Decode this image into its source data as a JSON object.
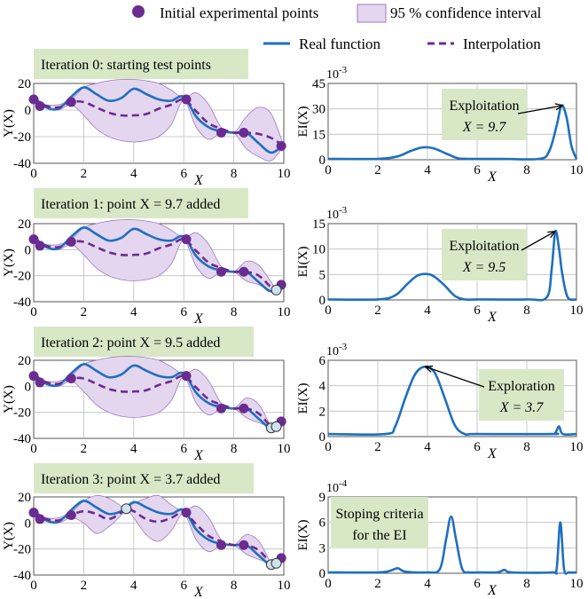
{
  "legend": {
    "initial_points": "Initial experimental points",
    "confidence": "95 % confidence interval",
    "real": "Real function",
    "interp": "Interpolation"
  },
  "colors": {
    "real": "#1f6fbf",
    "interp": "#6a2c91",
    "band_fill": "#e4d6ee",
    "band_edge": "#9b7bbf",
    "point": "#6a2c91",
    "added_point": "#cfe3ef",
    "ei": "#1f6fbf",
    "label_bg": "#d8e8c6"
  },
  "axis_labels": {
    "y_left": "Y(X)",
    "y_right": "EI(X)",
    "x": "X"
  },
  "chart_data": [
    {
      "type": "line",
      "panel": "Y0",
      "title": "Iteration 0: starting test points",
      "xlim": [
        0,
        10
      ],
      "ylim": [
        -40,
        20
      ],
      "xticks": [
        0,
        2,
        4,
        6,
        8,
        10
      ],
      "yticks": [
        -40,
        -20,
        0,
        20
      ],
      "series": [
        {
          "name": "Real function",
          "x": [
            0,
            0.5,
            1,
            1.5,
            2,
            2.5,
            3,
            3.5,
            4,
            4.5,
            5,
            5.5,
            6,
            6.5,
            7,
            7.5,
            8,
            8.5,
            9,
            9.5,
            10
          ],
          "y": [
            10,
            2,
            1,
            10,
            17,
            12,
            7,
            9,
            16,
            12,
            8,
            7,
            10,
            -5,
            -13,
            -16,
            -17,
            -17,
            -25,
            -32,
            -26
          ]
        },
        {
          "name": "Interpolation",
          "x": [
            0,
            0.5,
            1,
            1.5,
            2,
            2.5,
            3,
            3.5,
            4,
            4.5,
            5,
            5.5,
            6,
            6.5,
            7,
            7.5,
            8,
            8.5,
            9,
            9.5,
            10
          ],
          "y": [
            8,
            3,
            2,
            6,
            6,
            2,
            -2,
            -4,
            -4,
            -3,
            1,
            4,
            8,
            -1,
            -10,
            -14,
            -17,
            -17,
            -18,
            -21,
            -27
          ]
        },
        {
          "name": "95 % confidence interval",
          "x": [
            0,
            0.5,
            1,
            1.5,
            2,
            2.5,
            3,
            3.5,
            4,
            4.5,
            5,
            5.5,
            6,
            6.5,
            7,
            7.5,
            8,
            8.5,
            9,
            9.5,
            10
          ],
          "upper": [
            8,
            4,
            4,
            8,
            17,
            20,
            22,
            23,
            23,
            22,
            20,
            15,
            9,
            13,
            4,
            -13,
            -17,
            -5,
            2,
            -3,
            -27
          ],
          "lower": [
            8,
            2,
            0,
            4,
            -4,
            -14,
            -20,
            -23,
            -24,
            -23,
            -20,
            -11,
            7,
            -13,
            -22,
            -17,
            -17,
            -29,
            -35,
            -38,
            -27
          ]
        }
      ],
      "initial_points": {
        "x": [
          0,
          0.25,
          1.5,
          6.1,
          7.5,
          8.4,
          9.9
        ],
        "y": [
          8,
          3,
          6,
          8,
          -17,
          -17,
          -27
        ]
      },
      "added_points": {
        "x": [],
        "y": []
      }
    },
    {
      "type": "line",
      "panel": "EI0",
      "xlim": [
        0,
        10
      ],
      "ylim": [
        0,
        45
      ],
      "exponent": "10-3",
      "xticks": [
        0,
        2,
        4,
        6,
        8,
        10
      ],
      "yticks": [
        0,
        15,
        30,
        45
      ],
      "series": [
        {
          "name": "EI",
          "x": [
            0,
            2,
            2.8,
            3.3,
            3.7,
            4,
            4.3,
            4.7,
            5.2,
            5.6,
            6,
            7,
            8.5,
            8.9,
            9.2,
            9.4,
            9.6,
            9.8,
            10
          ],
          "y": [
            0.5,
            0.5,
            2,
            5,
            7,
            7.3,
            6.5,
            4,
            1,
            0.5,
            0.5,
            0.5,
            0.5,
            5,
            20,
            32,
            25,
            8,
            0.5
          ]
        }
      ],
      "annotation": {
        "label": "Exploitation",
        "value": "X = 9.7"
      }
    },
    {
      "type": "line",
      "panel": "Y1",
      "title": "Iteration 1: point X = 9.7 added",
      "xlim": [
        0,
        10
      ],
      "ylim": [
        -40,
        20
      ],
      "xticks": [
        0,
        2,
        4,
        6,
        8,
        10
      ],
      "yticks": [
        -40,
        -20,
        0,
        20
      ],
      "series": [
        {
          "name": "Real function",
          "x": [
            0,
            0.5,
            1,
            1.5,
            2,
            2.5,
            3,
            3.5,
            4,
            4.5,
            5,
            5.5,
            6,
            6.5,
            7,
            7.5,
            8,
            8.5,
            9,
            9.5,
            10
          ],
          "y": [
            10,
            2,
            1,
            10,
            17,
            12,
            7,
            9,
            16,
            12,
            8,
            7,
            10,
            -5,
            -13,
            -16,
            -17,
            -17,
            -25,
            -32,
            -26
          ]
        },
        {
          "name": "Interpolation",
          "x": [
            0,
            0.5,
            1,
            1.5,
            2,
            2.5,
            3,
            3.5,
            4,
            4.5,
            5,
            5.5,
            6,
            6.5,
            7,
            7.5,
            8,
            8.5,
            9,
            9.5,
            9.7,
            10
          ],
          "y": [
            8,
            3,
            2,
            6,
            6,
            2,
            -2,
            -4,
            -4,
            -3,
            1,
            4,
            8,
            -1,
            -10,
            -14,
            -17,
            -17,
            -20,
            -29,
            -31,
            -27
          ]
        },
        {
          "name": "95 % confidence interval",
          "x": [
            0,
            0.5,
            1,
            1.5,
            2,
            2.5,
            3,
            3.5,
            4,
            4.5,
            5,
            5.5,
            6,
            6.5,
            7,
            7.5,
            8,
            8.5,
            9,
            9.5,
            9.7,
            10
          ],
          "upper": [
            8,
            4,
            4,
            8,
            17,
            20,
            22,
            23,
            23,
            22,
            20,
            15,
            9,
            13,
            4,
            -13,
            -17,
            -9,
            -12,
            -25,
            -31,
            -27
          ],
          "lower": [
            8,
            2,
            0,
            4,
            -4,
            -14,
            -20,
            -23,
            -24,
            -23,
            -20,
            -11,
            7,
            -13,
            -22,
            -17,
            -17,
            -24,
            -27,
            -32,
            -31,
            -27
          ]
        }
      ],
      "initial_points": {
        "x": [
          0,
          0.25,
          1.5,
          6.1,
          7.5,
          8.4,
          9.9
        ],
        "y": [
          8,
          3,
          6,
          8,
          -17,
          -17,
          -27
        ]
      },
      "added_points": {
        "x": [
          9.7
        ],
        "y": [
          -31
        ]
      }
    },
    {
      "type": "line",
      "panel": "EI1",
      "xlim": [
        0,
        10
      ],
      "ylim": [
        0,
        15
      ],
      "exponent": "10-3",
      "xticks": [
        0,
        2,
        4,
        6,
        8,
        10
      ],
      "yticks": [
        0,
        5,
        10,
        15
      ],
      "series": [
        {
          "name": "EI",
          "x": [
            0,
            2,
            2.7,
            3.2,
            3.6,
            4,
            4.3,
            4.7,
            5.1,
            5.5,
            6,
            8,
            8.8,
            9,
            9.15,
            9.3,
            9.4,
            9.55,
            9.7,
            10
          ],
          "y": [
            0.1,
            0.1,
            0.9,
            3.2,
            4.8,
            5.1,
            4.5,
            2.8,
            0.8,
            0.1,
            0.1,
            0.1,
            0.5,
            6,
            13.5,
            10,
            6,
            2,
            0.2,
            0.1
          ]
        }
      ],
      "annotation": {
        "label": "Exploitation",
        "value": "X = 9.5"
      }
    },
    {
      "type": "line",
      "panel": "Y2",
      "title": "Iteration 2: point X = 9.5 added",
      "xlim": [
        0,
        10
      ],
      "ylim": [
        -40,
        20
      ],
      "xticks": [
        0,
        2,
        4,
        6,
        8,
        10
      ],
      "yticks": [
        -40,
        -20,
        0,
        20
      ],
      "series": [
        {
          "name": "Real function",
          "x": [
            0,
            0.5,
            1,
            1.5,
            2,
            2.5,
            3,
            3.5,
            4,
            4.5,
            5,
            5.5,
            6,
            6.5,
            7,
            7.5,
            8,
            8.5,
            9,
            9.5,
            10
          ],
          "y": [
            10,
            2,
            1,
            10,
            17,
            12,
            7,
            9,
            16,
            12,
            8,
            7,
            10,
            -5,
            -13,
            -16,
            -17,
            -17,
            -25,
            -32,
            -26
          ]
        },
        {
          "name": "Interpolation",
          "x": [
            0,
            0.5,
            1,
            1.5,
            2,
            2.5,
            3,
            3.5,
            4,
            4.5,
            5,
            5.5,
            6,
            6.5,
            7,
            7.5,
            8,
            8.5,
            9,
            9.5,
            9.7,
            10
          ],
          "y": [
            8,
            3,
            2,
            6,
            6,
            2,
            -2,
            -4,
            -4,
            -3,
            1,
            4,
            8,
            -1,
            -10,
            -14,
            -17,
            -17,
            -21,
            -31,
            -31,
            -27
          ]
        },
        {
          "name": "95 % confidence interval",
          "x": [
            0,
            0.5,
            1,
            1.5,
            2,
            2.5,
            3,
            3.5,
            4,
            4.5,
            5,
            5.5,
            6,
            6.5,
            7,
            7.5,
            8,
            8.5,
            9,
            9.5,
            9.7,
            10
          ],
          "upper": [
            8,
            4,
            4,
            8,
            17,
            20,
            22,
            23,
            23,
            22,
            20,
            15,
            9,
            13,
            4,
            -13,
            -17,
            -9,
            -14,
            -31,
            -31,
            -27
          ],
          "lower": [
            8,
            2,
            0,
            4,
            -4,
            -14,
            -20,
            -23,
            -24,
            -23,
            -20,
            -11,
            7,
            -13,
            -22,
            -17,
            -17,
            -24,
            -28,
            -31,
            -31,
            -27
          ]
        }
      ],
      "initial_points": {
        "x": [
          0,
          0.25,
          1.5,
          6.1,
          7.5,
          8.4,
          9.9
        ],
        "y": [
          8,
          3,
          6,
          8,
          -17,
          -17,
          -27
        ]
      },
      "added_points": {
        "x": [
          9.5,
          9.7
        ],
        "y": [
          -32,
          -31
        ]
      }
    },
    {
      "type": "line",
      "panel": "EI2",
      "xlim": [
        0,
        10
      ],
      "ylim": [
        0,
        6
      ],
      "exponent": "10-3",
      "xticks": [
        0,
        2,
        4,
        6,
        8,
        10
      ],
      "yticks": [
        0,
        2,
        4,
        6
      ],
      "series": [
        {
          "name": "EI",
          "x": [
            0,
            2.3,
            2.7,
            3.1,
            3.5,
            3.9,
            4.3,
            4.7,
            5.1,
            5.5,
            6,
            9,
            9.15,
            9.3,
            9.45,
            10
          ],
          "y": [
            0.2,
            0.2,
            0.8,
            3,
            4.9,
            5.5,
            5,
            3,
            0.9,
            0.2,
            0.2,
            0.2,
            0.3,
            0.8,
            0.2,
            0.2
          ]
        }
      ],
      "annotation": {
        "label": "Exploration",
        "value": "X = 3.7"
      }
    },
    {
      "type": "line",
      "panel": "Y3",
      "title": "Iteration 3: point X = 3.7 added",
      "xlim": [
        0,
        10
      ],
      "ylim": [
        -40,
        20
      ],
      "xticks": [
        0,
        2,
        4,
        6,
        8,
        10
      ],
      "yticks": [
        -40,
        -20,
        0,
        20
      ],
      "series": [
        {
          "name": "Real function",
          "x": [
            0,
            0.5,
            1,
            1.5,
            2,
            2.5,
            3,
            3.5,
            4,
            4.5,
            5,
            5.5,
            6,
            6.5,
            7,
            7.5,
            8,
            8.5,
            9,
            9.5,
            10
          ],
          "y": [
            10,
            2,
            1,
            10,
            17,
            12,
            7,
            9,
            16,
            12,
            8,
            7,
            10,
            -5,
            -13,
            -16,
            -17,
            -17,
            -25,
            -32,
            -26
          ]
        },
        {
          "name": "Interpolation",
          "x": [
            0,
            0.5,
            1,
            1.5,
            2,
            2.5,
            3,
            3.5,
            3.7,
            4,
            4.5,
            5,
            5.5,
            6,
            6.5,
            7,
            7.5,
            8,
            8.5,
            9,
            9.5,
            9.7,
            10
          ],
          "y": [
            8,
            3,
            2,
            6,
            9,
            7,
            3,
            8,
            11,
            9,
            3,
            1,
            4,
            8,
            -1,
            -10,
            -14,
            -17,
            -17,
            -21,
            -31,
            -31,
            -27
          ]
        },
        {
          "name": "95 % confidence interval",
          "x": [
            0,
            0.5,
            1,
            1.5,
            2,
            2.5,
            3,
            3.5,
            3.7,
            4,
            4.5,
            5,
            5.5,
            6,
            6.5,
            7,
            7.5,
            8,
            8.5,
            9,
            9.5,
            9.7,
            10
          ],
          "upper": [
            8,
            4,
            4,
            8,
            17,
            21,
            19,
            13,
            11,
            15,
            19,
            21,
            14,
            9,
            13,
            4,
            -13,
            -17,
            -9,
            -14,
            -31,
            -31,
            -27
          ],
          "lower": [
            8,
            2,
            0,
            4,
            0,
            -8,
            -3,
            6,
            11,
            4,
            -9,
            -14,
            -6,
            7,
            -13,
            -22,
            -17,
            -17,
            -24,
            -28,
            -31,
            -31,
            -27
          ]
        }
      ],
      "initial_points": {
        "x": [
          0,
          0.25,
          1.5,
          6.1,
          7.5,
          8.4,
          9.9
        ],
        "y": [
          8,
          3,
          6,
          8,
          -17,
          -17,
          -27
        ]
      },
      "added_points": {
        "x": [
          3.7,
          9.5,
          9.7
        ],
        "y": [
          11,
          -32,
          -31
        ]
      }
    },
    {
      "type": "line",
      "panel": "EI3",
      "xlim": [
        0,
        10
      ],
      "ylim": [
        0,
        9
      ],
      "exponent": "10-4",
      "xticks": [
        0,
        2,
        4,
        6,
        8,
        10
      ],
      "yticks": [
        0,
        3,
        6,
        9
      ],
      "series": [
        {
          "name": "EI",
          "x": [
            0,
            2,
            2.5,
            2.8,
            3.1,
            4,
            4.5,
            4.75,
            4.95,
            5.15,
            5.4,
            5.7,
            6,
            6.8,
            7.1,
            7.4,
            9,
            9.2,
            9.35,
            9.5,
            9.7,
            10
          ],
          "y": [
            0.1,
            0.1,
            0.3,
            0.6,
            0.2,
            0.1,
            0.5,
            4,
            6.7,
            4,
            0.5,
            0.1,
            0.1,
            0.1,
            0.4,
            0.1,
            0.1,
            0.5,
            6,
            0.5,
            0.1,
            0.1
          ]
        }
      ],
      "annotation": {
        "label": "Stoping criteria",
        "value": "for the EI"
      }
    }
  ]
}
